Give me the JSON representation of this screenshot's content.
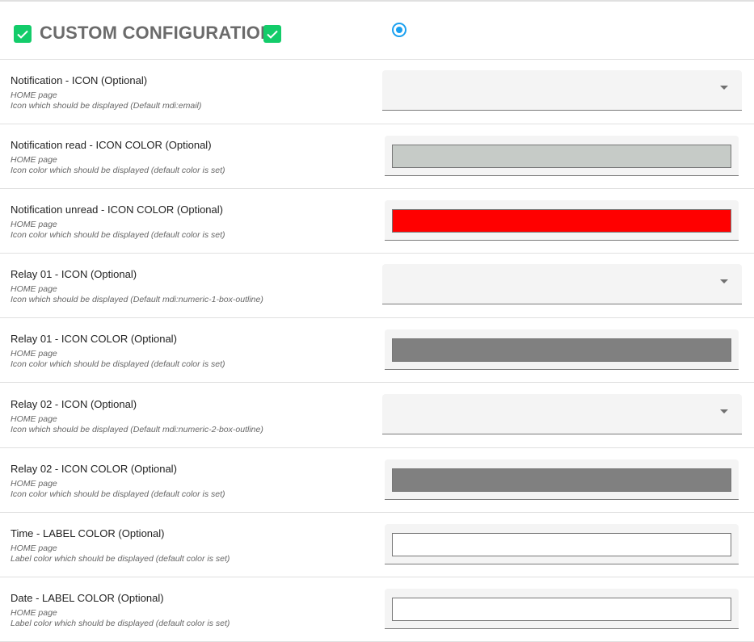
{
  "header": {
    "title": "CUSTOM CONFIGURATION",
    "check_color": "#13cc6a",
    "radio_selected": true,
    "radio_color": "#1aa0f0"
  },
  "rows": [
    {
      "label": "Notification - ICON (Optional)",
      "page": "HOME page",
      "description": "Icon which should be displayed (Default mdi:email)",
      "type": "select",
      "value": ""
    },
    {
      "label": "Notification read - ICON COLOR (Optional)",
      "page": "HOME page",
      "description": "Icon color which should be displayed (default color is set)",
      "type": "color",
      "value": "#c6cbc7"
    },
    {
      "label": "Notification unread - ICON COLOR (Optional)",
      "page": "HOME page",
      "description": "Icon color which should be displayed (default color is set)",
      "type": "color",
      "value": "#ff0000"
    },
    {
      "label": "Relay 01 - ICON (Optional)",
      "page": "HOME page",
      "description": "Icon which should be displayed (Default mdi:numeric-1-box-outline)",
      "type": "select",
      "value": ""
    },
    {
      "label": "Relay 01 - ICON COLOR (Optional)",
      "page": "HOME page",
      "description": "Icon color which should be displayed (default color is set)",
      "type": "color",
      "value": "#808080"
    },
    {
      "label": "Relay 02 - ICON (Optional)",
      "page": "HOME page",
      "description": "Icon which should be displayed (Default mdi:numeric-2-box-outline)",
      "type": "select",
      "value": ""
    },
    {
      "label": "Relay 02 - ICON COLOR (Optional)",
      "page": "HOME page",
      "description": "Icon color which should be displayed (default color is set)",
      "type": "color",
      "value": "#808080"
    },
    {
      "label": "Time - LABEL COLOR (Optional)",
      "page": "HOME page",
      "description": "Label color which should be displayed (default color is set)",
      "type": "color",
      "value": "#ffffff"
    },
    {
      "label": "Date - LABEL COLOR (Optional)",
      "page": "HOME page",
      "description": "Label color which should be displayed (default color is set)",
      "type": "color",
      "value": "#ffffff"
    }
  ]
}
